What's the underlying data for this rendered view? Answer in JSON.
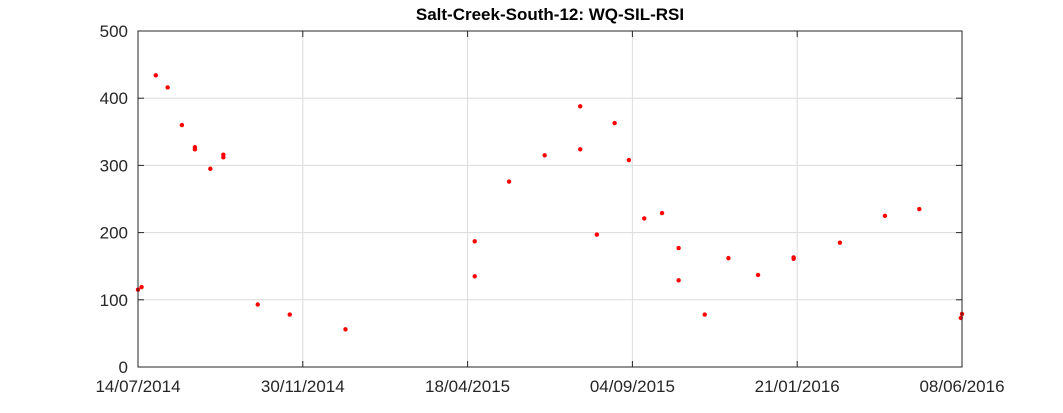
{
  "chart_data": {
    "type": "scatter",
    "title": "Salt-Creek-South-12: WQ-SIL-RSI",
    "xlabel": "",
    "ylabel": "",
    "x_range": [
      "2014-07-14",
      "2016-06-08"
    ],
    "ylim": [
      0,
      500
    ],
    "x_ticks": [
      "14/07/2014",
      "30/11/2014",
      "18/04/2015",
      "04/09/2015",
      "21/01/2016",
      "08/06/2016"
    ],
    "y_ticks": [
      "0",
      "100",
      "200",
      "300",
      "400",
      "500"
    ],
    "grid": true,
    "marker_color": "#ff0000",
    "series": [
      {
        "points": [
          {
            "x": "2014-07-14",
            "y": 115
          },
          {
            "x": "2014-07-17",
            "y": 119
          },
          {
            "x": "2014-07-29",
            "y": 434
          },
          {
            "x": "2014-08-08",
            "y": 416
          },
          {
            "x": "2014-08-20",
            "y": 360
          },
          {
            "x": "2014-08-31",
            "y": 327
          },
          {
            "x": "2014-08-31",
            "y": 324
          },
          {
            "x": "2014-09-13",
            "y": 295
          },
          {
            "x": "2014-09-24",
            "y": 316
          },
          {
            "x": "2014-09-24",
            "y": 312
          },
          {
            "x": "2014-10-23",
            "y": 93
          },
          {
            "x": "2014-11-19",
            "y": 78
          },
          {
            "x": "2015-01-05",
            "y": 56
          },
          {
            "x": "2015-04-24",
            "y": 187
          },
          {
            "x": "2015-04-24",
            "y": 135
          },
          {
            "x": "2015-05-23",
            "y": 276
          },
          {
            "x": "2015-06-22",
            "y": 315
          },
          {
            "x": "2015-07-22",
            "y": 388
          },
          {
            "x": "2015-07-22",
            "y": 324
          },
          {
            "x": "2015-08-05",
            "y": 197
          },
          {
            "x": "2015-08-20",
            "y": 363
          },
          {
            "x": "2015-09-01",
            "y": 308
          },
          {
            "x": "2015-09-14",
            "y": 221
          },
          {
            "x": "2015-09-29",
            "y": 229
          },
          {
            "x": "2015-10-13",
            "y": 177
          },
          {
            "x": "2015-10-13",
            "y": 129
          },
          {
            "x": "2015-11-04",
            "y": 78
          },
          {
            "x": "2015-11-24",
            "y": 162
          },
          {
            "x": "2015-12-19",
            "y": 137
          },
          {
            "x": "2016-01-18",
            "y": 163
          },
          {
            "x": "2016-01-18",
            "y": 161
          },
          {
            "x": "2016-02-26",
            "y": 185
          },
          {
            "x": "2016-04-04",
            "y": 225
          },
          {
            "x": "2016-05-03",
            "y": 235
          },
          {
            "x": "2016-06-07",
            "y": 73
          },
          {
            "x": "2016-06-28",
            "y": 79
          }
        ]
      }
    ]
  }
}
